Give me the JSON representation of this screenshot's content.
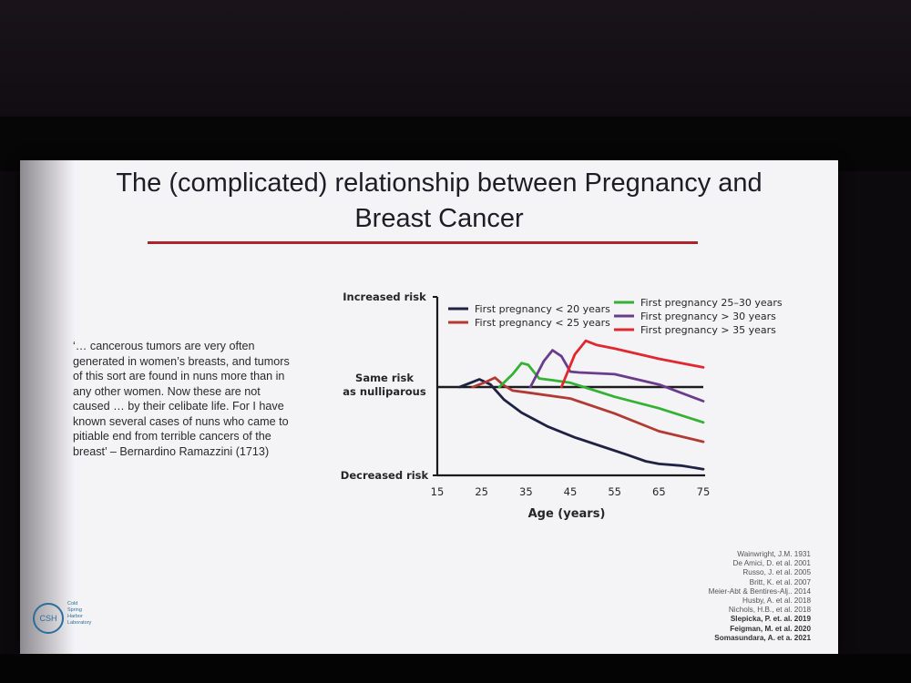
{
  "slide": {
    "title_line1": "The (complicated) relationship between Pregnancy and",
    "title_line2": "Breast Cancer",
    "quote_lines": [
      "‘… cancerous tumors are very often",
      "generated in women’s breasts, and tumors",
      "of this sort are found in nuns more than in",
      "any other women. Now these are not",
      "caused … by their celibate life. For I have",
      "known several cases of nuns who came to",
      "pitiable end from terrible cancers of the",
      "breast’ – Bernardino Ramazzini (1713)"
    ],
    "references": [
      {
        "text": "Wainwright, J.M. 1931",
        "bold": false
      },
      {
        "text": "De Amici, D. et al. 2001",
        "bold": false
      },
      {
        "text": "Russo, J. et al. 2005",
        "bold": false
      },
      {
        "text": "Britt, K. et al. 2007",
        "bold": false
      },
      {
        "text": "Meier-Abt & Bentires-Alj.. 2014",
        "bold": false
      },
      {
        "text": "Husby, A. et al. 2018",
        "bold": false
      },
      {
        "text": "Nichols, H.B., et al. 2018",
        "bold": false
      },
      {
        "text": "Slepicka, P. et. al. 2019",
        "bold": true
      },
      {
        "text": "Feigman, M. et al. 2020",
        "bold": true
      },
      {
        "text": "Somasundara, A. et a. 2021",
        "bold": true
      }
    ],
    "logo": {
      "abbr": "CSH",
      "lines": [
        "Cold",
        "Spring",
        "Harbor",
        "Laboratory"
      ],
      "color": "#2b6f9a"
    }
  },
  "chart_data": {
    "type": "line",
    "title": "",
    "xlabel": "Age (years)",
    "ylabel": "",
    "x_ticks": [
      15,
      25,
      35,
      45,
      55,
      65,
      75
    ],
    "xlim": [
      15,
      75
    ],
    "ylim": [
      -1,
      1
    ],
    "y_tick_labels": [
      {
        "value": 1,
        "lines": [
          "Increased risk"
        ]
      },
      {
        "value": 0,
        "lines": [
          "Same risk",
          "as nulliparous"
        ]
      },
      {
        "value": -1,
        "lines": [
          "Decreased risk"
        ]
      }
    ],
    "baseline": {
      "value": 0,
      "color": "#1c1c1c"
    },
    "series": [
      {
        "name": "First pregnancy < 20 years",
        "color": "#1f2243",
        "x": [
          20,
          23,
          24.5,
          27,
          30,
          34,
          40,
          46,
          52,
          58,
          62,
          65,
          70,
          75
        ],
        "y": [
          0,
          0.06,
          0.09,
          0.03,
          -0.14,
          -0.29,
          -0.45,
          -0.57,
          -0.67,
          -0.77,
          -0.84,
          -0.87,
          -0.89,
          -0.93
        ]
      },
      {
        "name": "First pregnancy < 25 years",
        "color": "#b23a32",
        "x": [
          23,
          26,
          28,
          30,
          32,
          35,
          45,
          55,
          65,
          75
        ],
        "y": [
          0,
          0.06,
          0.11,
          0.02,
          -0.04,
          -0.06,
          -0.13,
          -0.3,
          -0.5,
          -0.62
        ]
      },
      {
        "name": "First pregnancy 25–30 years",
        "color": "#34b233",
        "x": [
          29,
          32,
          34,
          35.5,
          38,
          41,
          45,
          55,
          65,
          75
        ],
        "y": [
          0,
          0.15,
          0.28,
          0.26,
          0.1,
          0.08,
          0.05,
          -0.11,
          -0.24,
          -0.4
        ]
      },
      {
        "name": "First pregnancy > 30 years",
        "color": "#6a3d8c",
        "x": [
          36,
          39,
          41,
          43,
          45,
          47,
          55,
          65,
          75
        ],
        "y": [
          0,
          0.3,
          0.43,
          0.36,
          0.18,
          0.17,
          0.15,
          0.03,
          -0.16
        ]
      },
      {
        "name": "First pregnancy > 35 years",
        "color": "#e0282e",
        "x": [
          43,
          46,
          48.5,
          51,
          55,
          65,
          75
        ],
        "y": [
          0,
          0.38,
          0.54,
          0.49,
          0.45,
          0.33,
          0.23
        ]
      }
    ],
    "legend_layout": "two columns, above the curves"
  }
}
